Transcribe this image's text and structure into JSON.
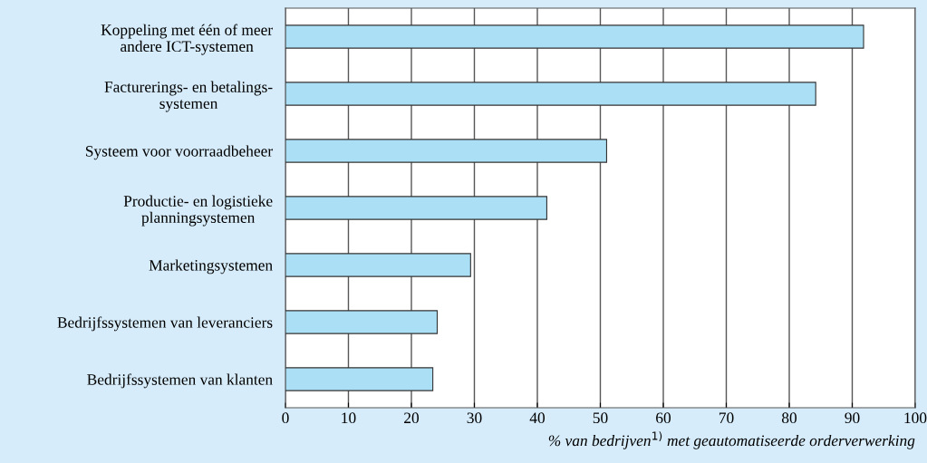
{
  "chart_data": {
    "type": "bar",
    "orientation": "horizontal",
    "categories": [
      "Koppeling met één of meer\nandere ICT-systemen",
      "Facturerings- en betalings-\nsystemen",
      "Systeem voor voorraadbeheer",
      "Productie- en logistieke\nplanningsystemen",
      "Marketingsystemen",
      "Bedrijfssystemen van leveranciers",
      "Bedrijfssystemen van klanten"
    ],
    "values": [
      91.8,
      84.2,
      51.0,
      41.5,
      29.4,
      24.1,
      23.4
    ],
    "color": "#aadff6",
    "xlim": [
      0,
      100
    ],
    "xticks": [
      0,
      10,
      20,
      30,
      40,
      50,
      60,
      70,
      80,
      90,
      100
    ],
    "xlabel": "% van bedrijven$^{1)}$ met geautomatiseerde orderverwerking",
    "grid": "x",
    "legend": false
  }
}
